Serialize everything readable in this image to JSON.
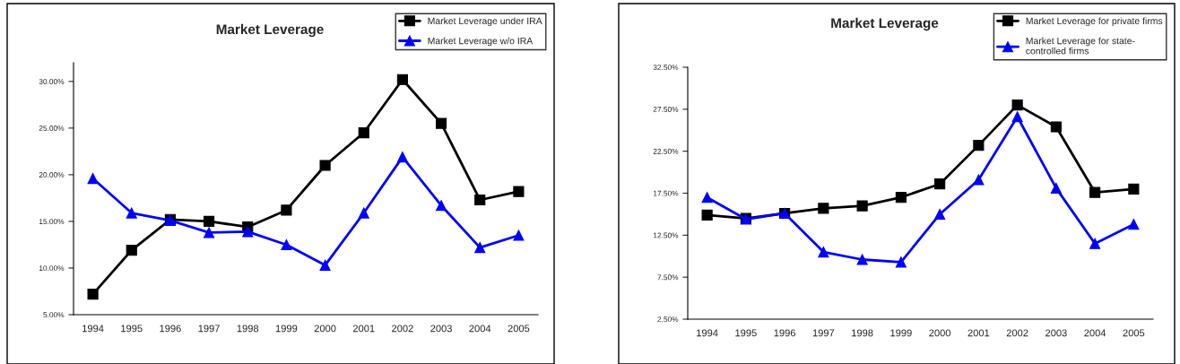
{
  "chart_data": [
    {
      "type": "line",
      "title": "Market Leverage",
      "categories": [
        "1994",
        "1995",
        "1996",
        "1997",
        "1998",
        "1999",
        "2000",
        "2001",
        "2002",
        "2003",
        "2004",
        "2005"
      ],
      "series": [
        {
          "name": "Market Leverage under IRA",
          "color": "#000000",
          "marker": "square",
          "values": [
            7.2,
            11.9,
            15.2,
            15.0,
            14.4,
            16.2,
            21.0,
            24.5,
            30.2,
            25.5,
            17.3,
            18.2
          ]
        },
        {
          "name": "Market Leverage w/o IRA",
          "color": "#0000ff",
          "marker": "triangle",
          "values": [
            19.6,
            15.9,
            15.1,
            13.8,
            13.9,
            12.5,
            10.3,
            15.9,
            21.9,
            16.7,
            12.2,
            13.5
          ]
        }
      ],
      "ylim": [
        5,
        32
      ],
      "yticks": [
        {
          "value": 5,
          "label": "5.00%"
        },
        {
          "value": 10,
          "label": "10.00%"
        },
        {
          "value": 15,
          "label": "15.00%"
        },
        {
          "value": 20,
          "label": "20.00%"
        },
        {
          "value": 25,
          "label": "25.00%"
        },
        {
          "value": 30,
          "label": "30.00%"
        }
      ],
      "grid": false,
      "legend": "top right",
      "line_style": "solid"
    },
    {
      "type": "line",
      "title": "Market Leverage",
      "categories": [
        "1994",
        "1995",
        "1996",
        "1997",
        "1998",
        "1999",
        "2000",
        "2001",
        "2002",
        "2003",
        "2004",
        "2005"
      ],
      "series": [
        {
          "name": "Market Leverage for private firms",
          "color": "#000000",
          "marker": "square",
          "values": [
            14.9,
            14.5,
            15.1,
            15.7,
            16.0,
            17.0,
            18.6,
            23.2,
            28.0,
            25.4,
            17.6,
            18.0
          ]
        },
        {
          "name": "Market Leverage for state-\ncontrolled firms",
          "color": "#0000ff",
          "marker": "triangle",
          "values": [
            17.0,
            14.4,
            15.1,
            10.5,
            9.6,
            9.3,
            15.0,
            19.1,
            26.6,
            18.1,
            11.5,
            13.8
          ]
        }
      ],
      "ylim": [
        2.5,
        32.5
      ],
      "yticks": [
        {
          "value": 2.5,
          "label": "2.50%"
        },
        {
          "value": 7.5,
          "label": "7.50%"
        },
        {
          "value": 12.5,
          "label": "12.50%"
        },
        {
          "value": 17.5,
          "label": "17.50%"
        },
        {
          "value": 22.5,
          "label": "22.50%"
        },
        {
          "value": 27.5,
          "label": "27.50%"
        },
        {
          "value": 32.5,
          "label": "32.50%"
        }
      ],
      "grid": false,
      "legend": "top right",
      "line_style": "solid"
    }
  ]
}
